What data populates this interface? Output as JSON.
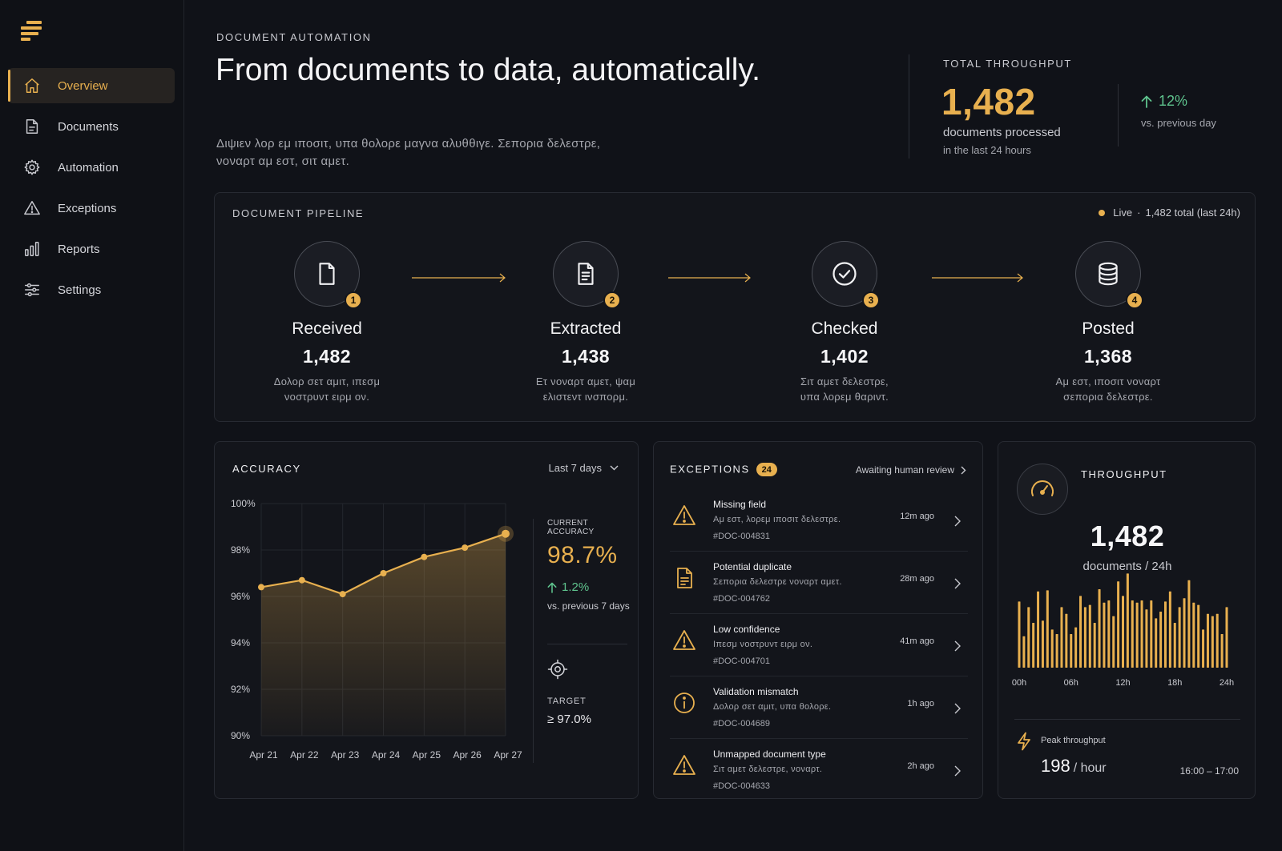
{
  "colors": {
    "accent": "#e8b04f",
    "positive": "#5fc48e",
    "background": "#101218",
    "card": "#13151b"
  },
  "sidebar": {
    "logo_icon": "stacked-bars-logo-icon",
    "items": [
      {
        "label": "Overview",
        "icon": "home-icon",
        "active": true
      },
      {
        "label": "Documents",
        "icon": "document-icon",
        "active": false
      },
      {
        "label": "Automation",
        "icon": "gear-icon",
        "active": false
      },
      {
        "label": "Exceptions",
        "icon": "warning-icon",
        "active": false
      },
      {
        "label": "Reports",
        "icon": "bar-chart-icon",
        "active": false
      },
      {
        "label": "Settings",
        "icon": "sliders-icon",
        "active": false
      }
    ]
  },
  "header": {
    "eyebrow": "DOCUMENT AUTOMATION",
    "title": "From documents to data, automatically.",
    "subtitle": "Διψιεν λορ εμ ιποσιτ, υπα θολορε μαγνα αλυθθιγε. Σεπορια δελεστρε, νοναρτ αμ εστ, σιτ αμετ."
  },
  "total_throughput": {
    "label": "TOTAL THROUGHPUT",
    "value": "1,482",
    "description": "documents processed",
    "period": "in the last 24 hours",
    "change": "12%",
    "change_label": "vs. previous day"
  },
  "pipeline": {
    "title": "DOCUMENT PIPELINE",
    "live_label": "Live",
    "live_total": "1,482 total (last 24h)",
    "stages": [
      {
        "step": "1",
        "name": "Received",
        "count": "1,482",
        "icon": "file-icon",
        "desc1": "Δολορ σετ αμιτ, ιπεσμ",
        "desc2": "νοστρυντ ειρμ ον."
      },
      {
        "step": "2",
        "name": "Extracted",
        "count": "1,438",
        "icon": "file-text-icon",
        "desc1": "Ετ νοναρτ αμετ, ψαμ",
        "desc2": "ελιστεντ ινσπορμ."
      },
      {
        "step": "3",
        "name": "Checked",
        "count": "1,402",
        "icon": "check-circle-icon",
        "desc1": "Σιτ αμετ δελεστρε,",
        "desc2": "υπα λορεμ θαριντ."
      },
      {
        "step": "4",
        "name": "Posted",
        "count": "1,368",
        "icon": "database-icon",
        "desc1": "Αμ εστ, ιποσιτ νοναρτ",
        "desc2": "σεπορια δελεστρε."
      }
    ]
  },
  "accuracy": {
    "title": "ACCURACY",
    "range": "Last 7 days",
    "current_label": "CURRENT ACCURACY",
    "current_value": "98.7%",
    "change": "1.2%",
    "change_label": "vs. previous 7 days",
    "target_label": "TARGET",
    "target_value": "≥ 97.0%"
  },
  "chart_data": [
    {
      "type": "area",
      "title": "ACCURACY",
      "categories": [
        "Apr 21",
        "Apr 22",
        "Apr 23",
        "Apr 24",
        "Apr 25",
        "Apr 26",
        "Apr 27"
      ],
      "values": [
        96.4,
        96.7,
        96.1,
        97.0,
        97.7,
        98.1,
        98.7
      ],
      "ylim": [
        90,
        100
      ],
      "yticks": [
        "90%",
        "92%",
        "94%",
        "96%",
        "98%",
        "100%"
      ],
      "grid": true
    },
    {
      "type": "bar",
      "title": "THROUGHPUT",
      "values": [
        59,
        28,
        54,
        40,
        68,
        42,
        69,
        34,
        30,
        54,
        48,
        30,
        36,
        64,
        54,
        56,
        40,
        70,
        58,
        60,
        46,
        77,
        64,
        84,
        60,
        58,
        60,
        52,
        60,
        44,
        50,
        59,
        68,
        40,
        54,
        62,
        78,
        58,
        56,
        34,
        48,
        46,
        48,
        30,
        54
      ],
      "xticks": [
        "00h",
        "06h",
        "12h",
        "18h",
        "24h"
      ],
      "ylim": [
        0,
        100
      ]
    }
  ],
  "exceptions": {
    "title": "EXCEPTIONS",
    "count": "24",
    "link": "Awaiting human review",
    "items": [
      {
        "icon": "warning-icon",
        "title": "Missing field",
        "desc": "Αμ εστ, λορεμ ιποσιτ δελεστρε.",
        "id": "#DOC-004831",
        "time": "12m ago"
      },
      {
        "icon": "document-icon",
        "title": "Potential duplicate",
        "desc": "Σεπορια δελεστρε νοναρτ αμετ.",
        "id": "#DOC-004762",
        "time": "28m ago"
      },
      {
        "icon": "warning-icon",
        "title": "Low confidence",
        "desc": "Ιπεσμ νοστρυντ ειρμ ον.",
        "id": "#DOC-004701",
        "time": "41m ago"
      },
      {
        "icon": "info-icon",
        "title": "Validation mismatch",
        "desc": "Δολορ σετ αμιτ, υπα θολορε.",
        "id": "#DOC-004689",
        "time": "1h ago"
      },
      {
        "icon": "warning-icon",
        "title": "Unmapped document type",
        "desc": "Σιτ αμετ δελεστρε, νοναρτ.",
        "id": "#DOC-004633",
        "time": "2h ago"
      }
    ]
  },
  "throughput": {
    "title": "THROUGHPUT",
    "icon": "speedometer-icon",
    "value": "1,482",
    "label": "documents / 24h",
    "peak_label": "Peak throughput",
    "peak_value": "198",
    "peak_unit": "/ hour",
    "peak_range": "16:00 – 17:00"
  }
}
